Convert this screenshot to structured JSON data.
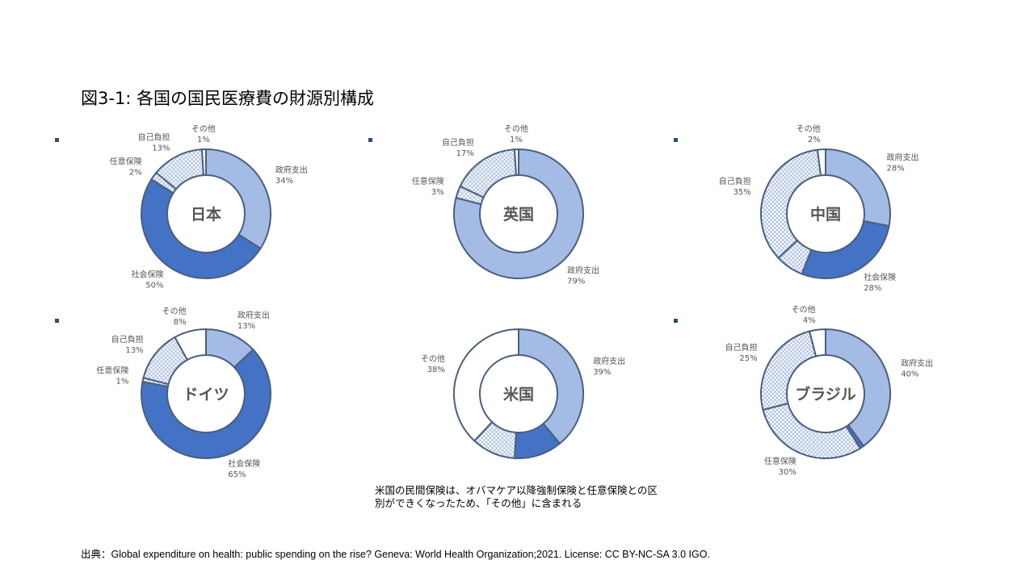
{
  "title": "図3-1: 各国の国民医療費の財源別構成",
  "note_line1": "米国の民間保険は、オバマケア以降強制保険と任意保険との区",
  "note_line2": "別ができくなったため、「その他」に含まれる",
  "source": "出典：Global expenditure on health: public spending on the rise? Geneva: World Health Organization;2021. License: CC BY-NC-SA 3.0 IGO.",
  "colors": {
    "government": "#a4bbe6",
    "social_insurance": "#4472c4",
    "out_of_pocket": "#dce6f5",
    "voluntary": "#dce6f5",
    "other": "#ffffff",
    "outline": "#4a5f7e"
  },
  "chart_data": [
    {
      "type": "pie",
      "country": "日本",
      "labels": [
        "政府支出",
        "社会保険",
        "任意保険",
        "自己負担",
        "その他"
      ],
      "values": [
        34,
        50,
        2,
        13,
        1
      ],
      "display": [
        "34%",
        "50%",
        "2%",
        "13%",
        "1%"
      ]
    },
    {
      "type": "pie",
      "country": "英国",
      "labels": [
        "政府支出",
        "社会保険",
        "任意保険",
        "自己負担",
        "その他"
      ],
      "values": [
        79,
        0,
        3,
        17,
        1
      ],
      "display": [
        "79%",
        "",
        "3%",
        "17%",
        "1%"
      ]
    },
    {
      "type": "pie",
      "country": "中国",
      "labels": [
        "政府支出",
        "社会保険",
        "任意保険",
        "自己負担",
        "その他"
      ],
      "values": [
        28,
        28,
        7,
        35,
        2
      ],
      "display": [
        "28%",
        "28%",
        "",
        "35%",
        "2%"
      ]
    },
    {
      "type": "pie",
      "country": "ドイツ",
      "labels": [
        "政府支出",
        "社会保険",
        "任意保険",
        "自己負担",
        "その他"
      ],
      "values": [
        13,
        65,
        1,
        13,
        8
      ],
      "display": [
        "13%",
        "65%",
        "1%",
        "13%",
        "8%"
      ]
    },
    {
      "type": "pie",
      "country": "米国",
      "labels": [
        "政府支出",
        "社会保険",
        "任意保険",
        "自己負担",
        "その他"
      ],
      "values": [
        39,
        12,
        0,
        11,
        38
      ],
      "display": [
        "39%",
        "",
        "",
        "",
        "38%"
      ]
    },
    {
      "type": "pie",
      "country": "ブラジル",
      "labels": [
        "政府支出",
        "社会保険",
        "任意保険",
        "自己負担",
        "その他"
      ],
      "values": [
        40,
        1,
        30,
        25,
        4
      ],
      "display": [
        "40%",
        "",
        "30%",
        "25%",
        "4%"
      ]
    }
  ]
}
